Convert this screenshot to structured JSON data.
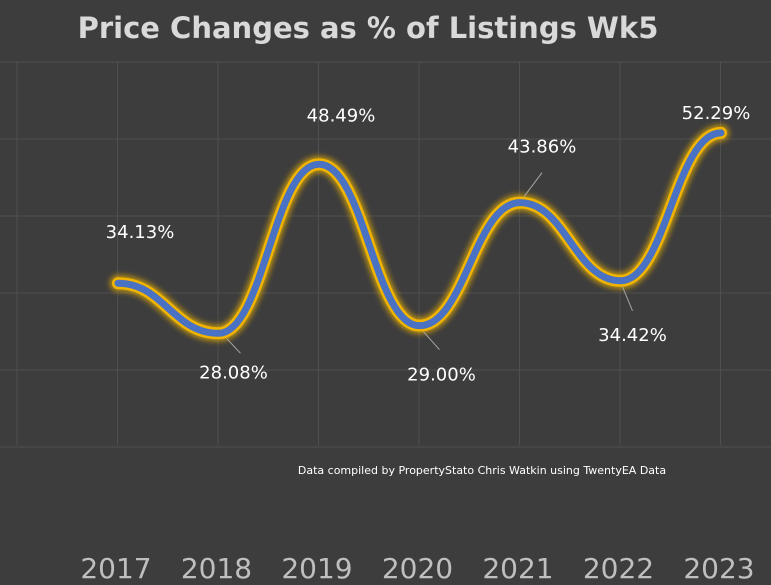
{
  "chart_data": {
    "type": "line",
    "title": "Price Changes as % of Listings  Wk5",
    "note": "Data compiled by PropertyStato Chris Watkin using TwentyEA Data",
    "categories": [
      "2017",
      "2018",
      "2019",
      "2020",
      "2021",
      "2022",
      "2023"
    ],
    "series": [
      {
        "values": [
          34.13,
          28.08,
          48.49,
          29.0,
          43.86,
          34.42,
          52.29
        ],
        "labels": [
          "34.13%",
          "28.08%",
          "48.49%",
          "29.00%",
          "43.86%",
          "34.42%",
          "52.29%"
        ],
        "color": "#4a72c4",
        "glow_color": "#f0b400"
      }
    ],
    "ylim": [
      10,
      60
    ],
    "smooth": true,
    "grid": true,
    "legend": "none",
    "colors": {
      "background": "#3d3d3d",
      "title": "#d9d9d9",
      "gridline": "#4f4f4f",
      "data_label": "#ffffff",
      "tick_label": "#bfbfbf",
      "note": "#ffffff"
    }
  }
}
